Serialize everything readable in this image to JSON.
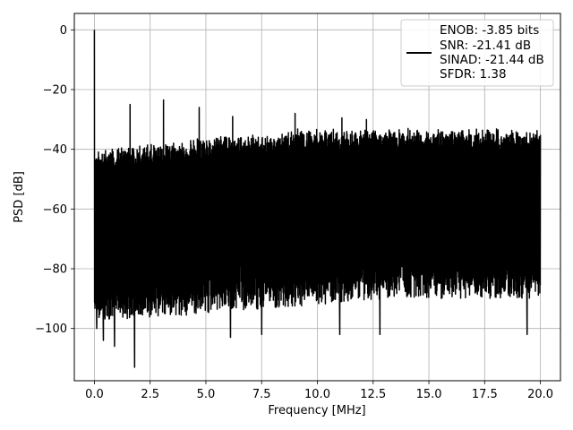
{
  "chart_data": {
    "type": "line",
    "title": "",
    "xlabel": "Frequency [MHz]",
    "ylabel": "PSD [dB]",
    "xlim": [
      -0.9,
      20.9
    ],
    "ylim": [
      -117.5,
      5.5
    ],
    "xticks": [
      0.0,
      2.5,
      5.0,
      7.5,
      10.0,
      12.5,
      15.0,
      17.5,
      20.0
    ],
    "xtick_labels": [
      "0.0",
      "2.5",
      "5.0",
      "7.5",
      "10.0",
      "12.5",
      "15.0",
      "17.5",
      "20.0"
    ],
    "yticks": [
      0,
      -20,
      -40,
      -60,
      -80,
      -100
    ],
    "ytick_labels": [
      "0",
      "−20",
      "−40",
      "−60",
      "−80",
      "−100"
    ],
    "grid": true,
    "legend_position": "top-right",
    "legend": {
      "line_color": "#000000",
      "lines": [
        "ENOB: -3.85 bits",
        "SNR: -21.41 dB",
        "SINAD: -21.44 dB",
        "SFDR: 1.38"
      ]
    },
    "series": [
      {
        "color": "#000000",
        "x_range": [
          0.0,
          20.0
        ],
        "description_peaks": [
          {
            "x": 0.0,
            "y": 0
          },
          {
            "x": 1.6,
            "y": -25
          },
          {
            "x": 3.1,
            "y": -23.5
          },
          {
            "x": 4.7,
            "y": -26
          },
          {
            "x": 6.2,
            "y": -29
          },
          {
            "x": 9.0,
            "y": -28
          },
          {
            "x": 11.1,
            "y": -29.5
          },
          {
            "x": 12.2,
            "y": -30
          }
        ],
        "spur_lows": [
          {
            "x": 0.1,
            "y": -100
          },
          {
            "x": 0.4,
            "y": -104
          },
          {
            "x": 0.9,
            "y": -106
          },
          {
            "x": 1.8,
            "y": -113
          },
          {
            "x": 6.1,
            "y": -103
          },
          {
            "x": 7.5,
            "y": -102
          },
          {
            "x": 11.0,
            "y": -102
          },
          {
            "x": 12.8,
            "y": -102
          },
          {
            "x": 19.4,
            "y": -102
          }
        ],
        "upper_envelope": {
          "start": -40,
          "end": -33
        },
        "lower_envelope": {
          "start": -90,
          "end": -82
        }
      }
    ]
  }
}
